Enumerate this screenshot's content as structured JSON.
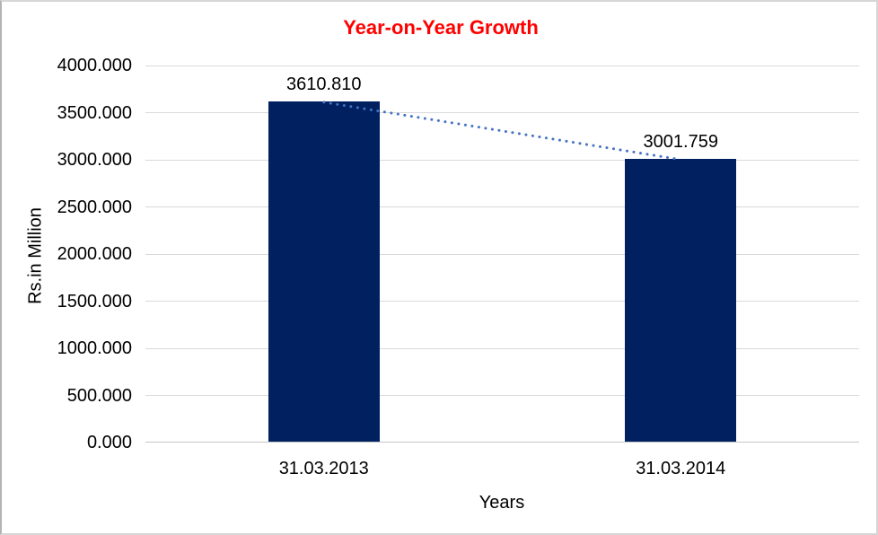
{
  "chart": {
    "title": "Year-on-Year Growth",
    "title_color": "#FF0000",
    "ylabel": "Rs.in Million",
    "xlabel": "Years",
    "bar_color": "#002060",
    "trend_color": "#4472C4",
    "gridline_color": "#D9D9D9",
    "axis_line_color": "#C6C6C6",
    "text_color": "#000000"
  },
  "chart_data": {
    "type": "bar",
    "title": "Year-on-Year Growth",
    "categories": [
      "31.03.2013",
      "31.03.2014"
    ],
    "values": [
      3610.81,
      3001.759
    ],
    "data_labels": [
      "3610.810",
      "3001.759"
    ],
    "series": [
      {
        "name": "Year-on-Year Growth",
        "values": [
          3610.81,
          3001.759
        ]
      }
    ],
    "xlabel": "Years",
    "ylabel": "Rs.in Million",
    "ylim": [
      0,
      4000
    ],
    "ytick_step": 500,
    "ytick_values": [
      0,
      500,
      1000,
      1500,
      2000,
      2500,
      3000,
      3500,
      4000
    ],
    "ytick_labels": [
      "0.000",
      "500.000",
      "1000.000",
      "1500.000",
      "2000.000",
      "2500.000",
      "3000.000",
      "3500.000",
      "4000.000"
    ],
    "grid": true,
    "legend": false,
    "trendline": true,
    "trendline_style": "dotted"
  }
}
